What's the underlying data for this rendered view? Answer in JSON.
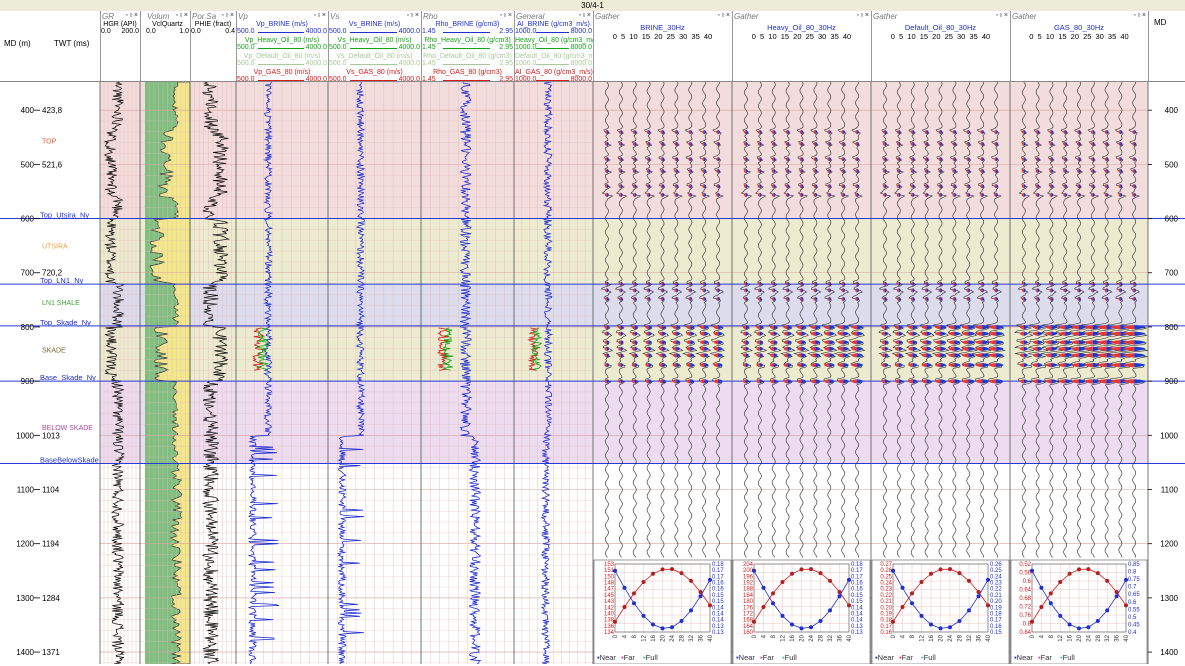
{
  "window_title": "30/4-1",
  "depth_axis": {
    "md_label": "MD (m)",
    "twt_label": "TWT (ms)",
    "right_label": "MD"
  },
  "tracks": [
    {
      "id": "gr",
      "name": "GR",
      "curves": [
        {
          "label": "HGR (API)",
          "min": "0.0",
          "max": "200.0",
          "color": "#000000"
        }
      ]
    },
    {
      "id": "volum",
      "name": "Volum",
      "curves": [
        {
          "label": "VclQuartz",
          "min": "0.0",
          "max": "1.0",
          "color": "#000000"
        }
      ]
    },
    {
      "id": "porsa",
      "name": "Por.Sa",
      "curves": [
        {
          "label": "PHIE (fract)",
          "min": "0.0",
          "max": "0.4",
          "color": "#000000"
        }
      ]
    },
    {
      "id": "vp",
      "name": "Vp",
      "curves": [
        {
          "label": "Vp_BRINE (m/s)",
          "min": "500.0",
          "max": "4000.0",
          "color": "#1f2fd0"
        },
        {
          "label": "Vp_Heavy_Oil_80 (m/s)",
          "min": "500.0",
          "max": "4000.0",
          "color": "#16a51a"
        },
        {
          "label": "Vp_Default_Oil_80 (m/s)",
          "min": "500.0",
          "max": "4000.0",
          "color": "#a8c89a"
        },
        {
          "label": "Vp_GAS_80 (m/s)",
          "min": "500.0",
          "max": "4000.0",
          "color": "#d41a1a"
        }
      ]
    },
    {
      "id": "vs",
      "name": "Vs",
      "curves": [
        {
          "label": "Vs_BRINE (m/s)",
          "min": "500.0",
          "max": "4000.0",
          "color": "#1f2fd0"
        },
        {
          "label": "Vs_Heavy_Oil_80 (m/s)",
          "min": "500.0",
          "max": "4000.0",
          "color": "#16a51a"
        },
        {
          "label": "Vs_Default_Oil_80 (m/s)",
          "min": "500.0",
          "max": "4000.0",
          "color": "#a8c89a"
        },
        {
          "label": "Vs_GAS_80 (m/s)",
          "min": "500.0",
          "max": "4000.0",
          "color": "#d41a1a"
        }
      ]
    },
    {
      "id": "rho",
      "name": "Rho",
      "curves": [
        {
          "label": "Rho_BRINE (g/cm3)",
          "min": "1.45",
          "max": "2.95",
          "color": "#1f2fd0"
        },
        {
          "label": "Rho_Heavy_Oil_80 (g/cm3)",
          "min": "1.45",
          "max": "2.95",
          "color": "#16a51a"
        },
        {
          "label": "Rho_Default_Oil_80 (g/cm3)",
          "min": "1.45",
          "max": "2.95",
          "color": "#a8c89a"
        },
        {
          "label": "Rho_GAS_80 (g/cm3)",
          "min": "1.45",
          "max": "2.95",
          "color": "#d41a1a"
        }
      ]
    },
    {
      "id": "general",
      "name": "General",
      "curves": [
        {
          "label": "AI_BRINE (g/cm3_m/s)",
          "min": "1000.0",
          "max": "8000.0",
          "color": "#1f2fd0"
        },
        {
          "label": "Heavy_Oil_80 (g/cm3_m/s)",
          "min": "1000.0",
          "max": "8000.0",
          "color": "#16a51a"
        },
        {
          "label": "Default_Oil_80 (g/cm3_m/s)",
          "min": "1000.0",
          "max": "8000.0",
          "color": "#a8c89a"
        },
        {
          "label": "AI_GAS_80 (g/cm3_m/s)",
          "min": "1000.0",
          "max": "8000.0",
          "color": "#d41a1a"
        }
      ]
    }
  ],
  "gathers": [
    {
      "id": "brine",
      "name": "Gather",
      "title": "BRINE_30Hz",
      "offsets": "0  5  10 15 20 25 30 35 40",
      "strength": 1.0,
      "ticks_left": [
        "153",
        "151",
        "150",
        "148",
        "147",
        "145",
        "143",
        "142",
        "140",
        "138",
        "136",
        "134"
      ],
      "ticks_right": [
        "0.18",
        "0.17",
        "0.17",
        "0.16",
        "0.16",
        "0.15",
        "0.15",
        "0.14",
        "0.14",
        "0.14",
        "0.13",
        "0.13"
      ]
    },
    {
      "id": "heavy",
      "name": "Gather",
      "title": "Heavy_Oil_80_30Hz",
      "offsets": "0  5  10 15 20 25 30 35 40",
      "strength": 1.2,
      "ticks_left": [
        "204",
        "200",
        "196",
        "192",
        "188",
        "184",
        "180",
        "176",
        "172",
        "168",
        "164",
        "160"
      ],
      "ticks_right": [
        "0.18",
        "0.17",
        "0.17",
        "0.16",
        "0.16",
        "0.15",
        "0.15",
        "0.14",
        "0.14",
        "0.14",
        "0.13",
        "0.13"
      ]
    },
    {
      "id": "default",
      "name": "Gather",
      "title": "Default_Oil_80_30Hz",
      "offsets": "0  5  10 15 20 25 30 35 40",
      "strength": 1.4,
      "ticks_left": [
        "0.27",
        "0.26",
        "0.25",
        "0.24",
        "0.23",
        "0.22",
        "0.21",
        "0.20",
        "0.19",
        "0.18",
        "0.17",
        "0.16"
      ],
      "ticks_right": [
        "0.26",
        "0.25",
        "0.24",
        "0.23",
        "0.22",
        "0.21",
        "0.20",
        "0.19",
        "0.18",
        "0.17",
        "0.16",
        "0.15"
      ]
    },
    {
      "id": "gas",
      "name": "Gather",
      "title": "GAS_80_30Hz",
      "offsets": "0  5  10 15 20 25 30 35 40",
      "strength": 2.2,
      "ticks_left": [
        "0.52",
        "0.56",
        "0.6",
        "0.64",
        "0.68",
        "0.72",
        "0.76",
        "0.8",
        "0.84"
      ],
      "ticks_right": [
        "0.85",
        "0.8",
        "0.75",
        "0.7",
        "0.65",
        "0.6",
        "0.55",
        "0.5",
        "0.45",
        "0.4"
      ]
    }
  ],
  "ava_legend": {
    "near": "Near",
    "far": "Far",
    "full": "Full"
  },
  "ava_x_ticks": [
    "0",
    "4",
    "8",
    "12",
    "16",
    "20",
    "24",
    "28",
    "32",
    "36",
    "40"
  ],
  "depth_ticks": [
    {
      "md": "400",
      "twt": "423,8"
    },
    {
      "md": "500",
      "twt": "521,6"
    },
    {
      "md": "600",
      "twt": ""
    },
    {
      "md": "700",
      "twt": "720,2"
    },
    {
      "md": "800",
      "twt": ""
    },
    {
      "md": "900",
      "twt": ""
    },
    {
      "md": "1000",
      "twt": "1013"
    },
    {
      "md": "1100",
      "twt": "1104"
    },
    {
      "md": "1200",
      "twt": "1194"
    },
    {
      "md": "1300",
      "twt": "1284"
    },
    {
      "md": "1400",
      "twt": "1371"
    }
  ],
  "tops": [
    {
      "name": "TOP",
      "md": 456,
      "type": "zone",
      "color": "#e85a3c"
    },
    {
      "name": "Top_Utsira_Ny",
      "md": 600,
      "type": "line",
      "color": "#000000"
    },
    {
      "name": "UTSIRA",
      "md": 650,
      "type": "zone",
      "color": "#e8a040"
    },
    {
      "name": "Top_LN1_Ny",
      "md": 721,
      "type": "line",
      "color": "#000000"
    },
    {
      "name": "LN1 SHALE",
      "md": 754,
      "type": "zone",
      "color": "#3aa83a"
    },
    {
      "name": "Top_Skade_Ny",
      "md": 798,
      "type": "line",
      "color": "#000000"
    },
    {
      "name": "SKADE",
      "md": 842,
      "type": "zone",
      "color": "#7a6a3a"
    },
    {
      "name": "Base_Skade_Ny",
      "md": 900,
      "type": "line",
      "color": "#000000"
    },
    {
      "name": "BELOW SKADE",
      "md": 985,
      "type": "zone",
      "color": "#b04aa0"
    },
    {
      "name": "BaseBelowSkade",
      "md": 1052,
      "type": "line",
      "color": "#000000"
    }
  ],
  "zone_colors": {
    "upper": "#f3dcdc",
    "utsira": "#ecebd0",
    "ln1": "#dcdcec",
    "skade": "#ecebd0",
    "below": "#eddcf0",
    "lower": "#ffffff"
  }
}
